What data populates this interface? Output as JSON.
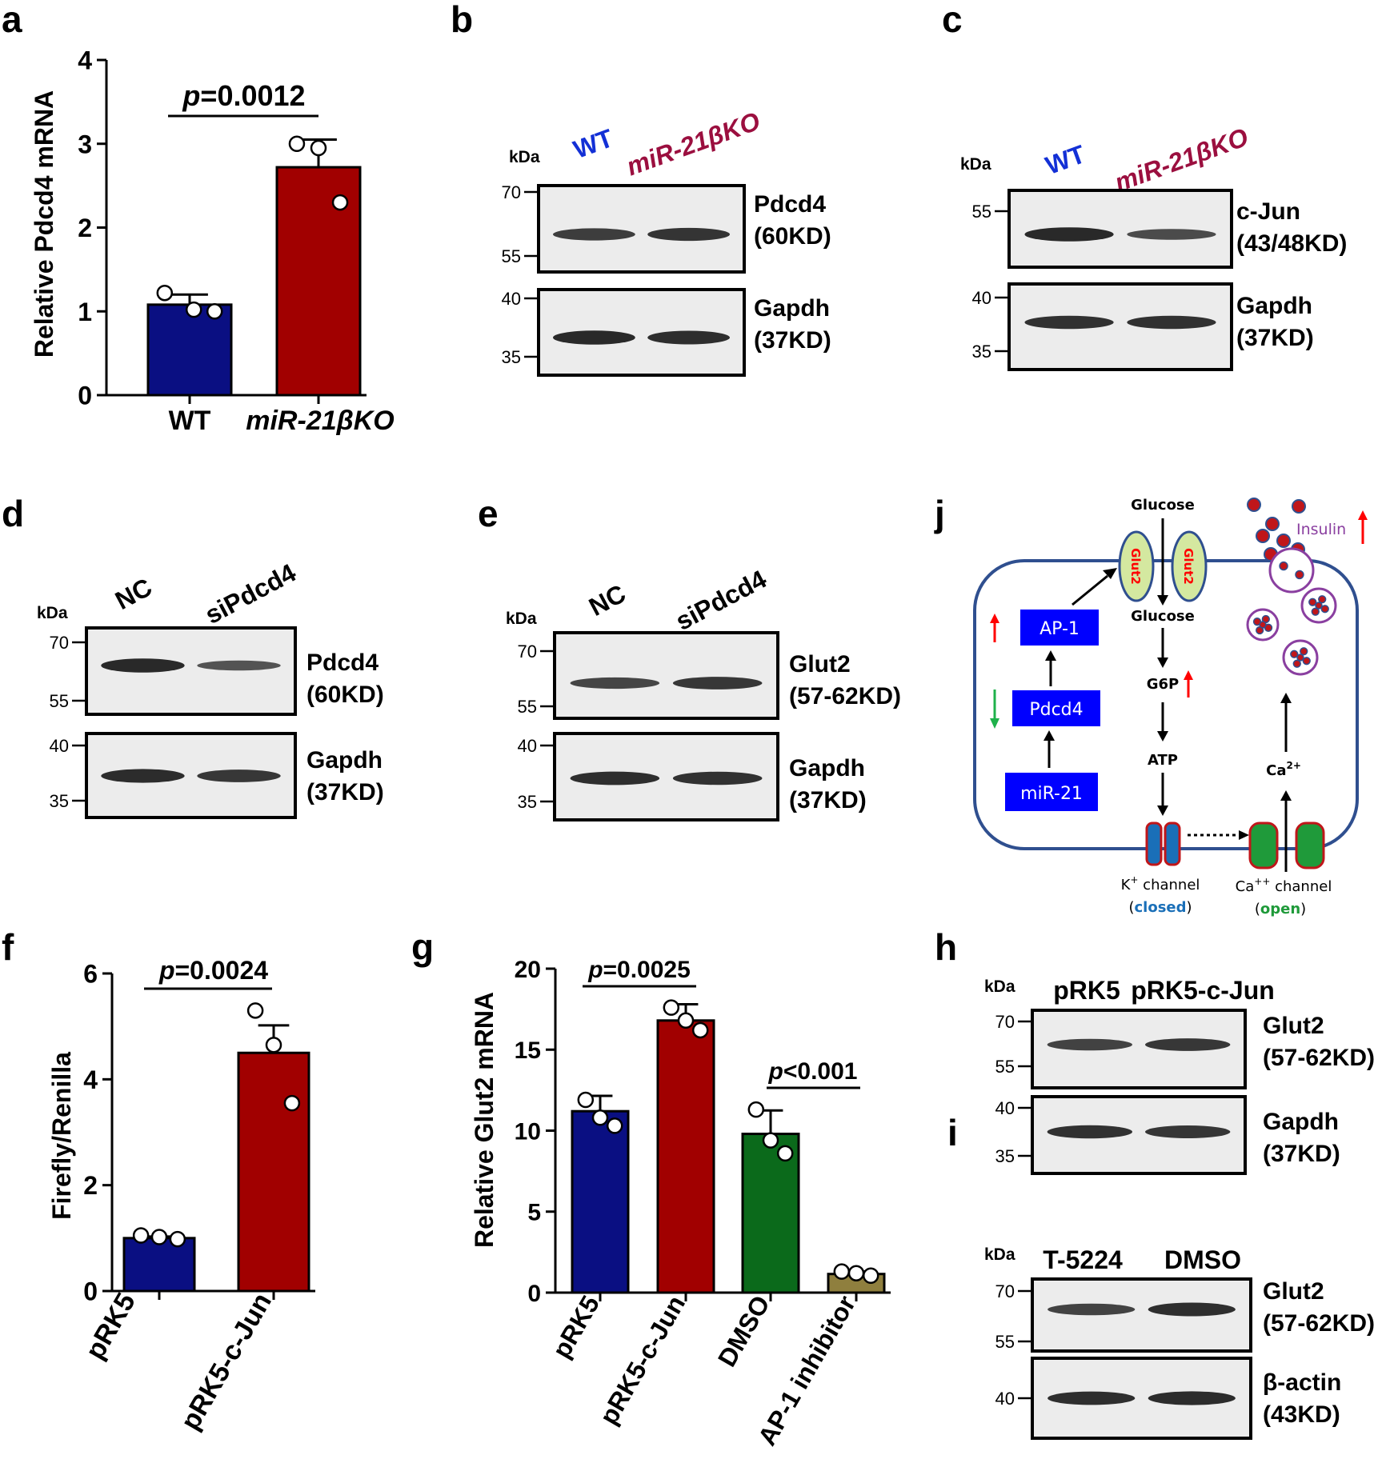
{
  "panels": {
    "a": "a",
    "b": "b",
    "c": "c",
    "d": "d",
    "e": "e",
    "f": "f",
    "g": "g",
    "h": "h",
    "i": "i",
    "j": "j"
  },
  "colors": {
    "wt_blue": "#0a0f82",
    "ko_red": "#a10000",
    "dmso_green": "#0b6a1b",
    "inhibitor_olive": "#8f7f3e",
    "wt_label": "#1330d6",
    "ko_label": "#9b0f3f",
    "diagram_box": "#0000ff",
    "cell_outline": "#2f4f8f",
    "up_arrow": "#ff0000",
    "down_arrow": "#1fb14b",
    "insulin_text": "#8a3fa0"
  },
  "chart_data": [
    {
      "panel": "a",
      "type": "bar",
      "categories": [
        "WT",
        "miR-21βKO"
      ],
      "values": [
        1.08,
        2.72
      ],
      "errors": [
        0.12,
        0.33
      ],
      "points": [
        [
          1.22,
          1.02,
          1.0
        ],
        [
          3.0,
          2.95,
          2.3
        ]
      ],
      "ylabel": "Relative Pdcd4 mRNA",
      "yticks": [
        0,
        1,
        2,
        3,
        4
      ],
      "ylim": [
        0,
        4
      ],
      "annotation": "=0.0012",
      "annotation_p": "p"
    },
    {
      "panel": "f",
      "type": "bar",
      "categories": [
        "pRK5",
        "pRK5-c-Jun"
      ],
      "values": [
        1.0,
        4.5
      ],
      "errors": [
        0.03,
        0.52
      ],
      "points": [
        [
          1.05,
          1.02,
          0.98
        ],
        [
          5.3,
          4.65,
          3.55
        ]
      ],
      "ylabel": "Firefly/Renilla",
      "yticks": [
        0,
        2,
        4,
        6
      ],
      "ylim": [
        0,
        6
      ],
      "annotation": "=0.0024",
      "annotation_p": "p"
    },
    {
      "panel": "g",
      "type": "bar",
      "categories": [
        "pRK5",
        "pRK5-c-Jun",
        "DMSO",
        "AP-1 inhibitor"
      ],
      "values": [
        11.2,
        16.8,
        9.8,
        1.15
      ],
      "errors": [
        0.95,
        1.0,
        1.45,
        0.15
      ],
      "points": [
        [
          11.9,
          10.8,
          10.3
        ],
        [
          17.6,
          16.8,
          16.2
        ],
        [
          11.3,
          9.4,
          8.6
        ],
        [
          1.3,
          1.2,
          1.05
        ]
      ],
      "ylabel": "Relative Glut2 mRNA",
      "yticks": [
        0,
        5,
        10,
        15,
        20
      ],
      "ylim": [
        0,
        20
      ],
      "annotations": [
        {
          "p": "p",
          "text": "=0.0025"
        },
        {
          "p": "p",
          "text": "<0.001"
        }
      ]
    }
  ],
  "blots": {
    "b": {
      "kda": "kDa",
      "lanes": [
        "WT",
        "miR-21βKO"
      ],
      "upper_markers": [
        "70",
        "55"
      ],
      "lower_markers": [
        "40",
        "35"
      ],
      "upper_protein": [
        "Pdcd4",
        "(60KD)"
      ],
      "lower_protein": [
        "Gapdh",
        "(37KD)"
      ]
    },
    "c": {
      "kda": "kDa",
      "lanes": [
        "WT",
        "miR-21βKO"
      ],
      "upper_markers": [
        "55"
      ],
      "lower_markers": [
        "40",
        "35"
      ],
      "upper_protein": [
        "c-Jun",
        "(43/48KD)"
      ],
      "lower_protein": [
        "Gapdh",
        "(37KD)"
      ]
    },
    "d": {
      "kda": "kDa",
      "lanes": [
        "NC",
        "siPdcd4"
      ],
      "upper_markers": [
        "70",
        "55"
      ],
      "lower_markers": [
        "40",
        "35"
      ],
      "upper_protein": [
        "Pdcd4",
        "(60KD)"
      ],
      "lower_protein": [
        "Gapdh",
        "(37KD)"
      ]
    },
    "e": {
      "kda": "kDa",
      "lanes": [
        "NC",
        "siPdcd4"
      ],
      "upper_markers": [
        "70",
        "55"
      ],
      "lower_markers": [
        "40",
        "35"
      ],
      "upper_protein": [
        "Glut2",
        "(57-62KD)"
      ],
      "lower_protein": [
        "Gapdh",
        "(37KD)"
      ]
    },
    "h": {
      "kda": "kDa",
      "lanes": [
        "pRK5",
        "pRK5-c-Jun"
      ],
      "upper_markers": [
        "70",
        "55"
      ],
      "lower_markers": [
        "40",
        "35"
      ],
      "upper_protein": [
        "Glut2",
        "(57-62KD)"
      ],
      "lower_protein": [
        "Gapdh",
        "(37KD)"
      ]
    },
    "i": {
      "kda": "kDa",
      "lanes": [
        "T-5224",
        "DMSO"
      ],
      "upper_markers": [
        "70",
        "55"
      ],
      "lower_markers": [
        "40"
      ],
      "upper_protein": [
        "Glut2",
        "(57-62KD)"
      ],
      "lower_protein": [
        "β-actin",
        "(43KD)"
      ]
    }
  },
  "diagram": {
    "glucose_out": "Glucose",
    "glucose_in": "Glucose",
    "glut2": "Glut2",
    "g6p": "G6P",
    "atp": "ATP",
    "ca": "Ca",
    "ca_sup": "2+",
    "insulin": "Insulin",
    "boxes": [
      "AP-1",
      "Pdcd4",
      "miR-21"
    ],
    "k_channel": "K",
    "k_sup": "+",
    "k_channel_rest": " channel",
    "k_state": "closed",
    "ca_channel": "Ca",
    "ca_channel_sup": "++",
    "ca_channel_rest": " channel",
    "ca_state": "open",
    "paren_open": "(",
    "paren_close": ")"
  }
}
